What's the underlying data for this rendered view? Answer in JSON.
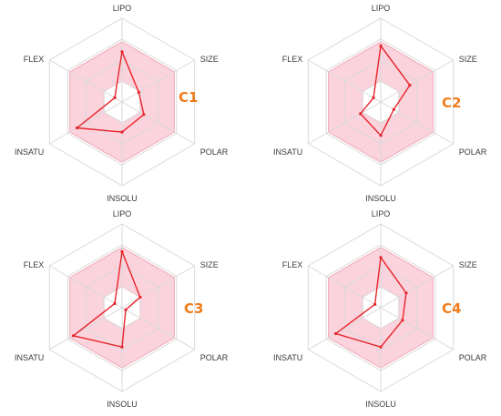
{
  "colors": {
    "grid": "#d9d9d9",
    "band_fill": "#fbd3dc",
    "band_stroke": "#f2a7b8",
    "series_line": "#e8232a",
    "label_accent": "#f07c1c"
  },
  "chart_data": [
    {
      "type": "radar",
      "title": "C1",
      "axes": [
        "LIPO",
        "SIZE",
        "POLAR",
        "INSOLU",
        "INSATU",
        "FLEX"
      ],
      "rmax": 1,
      "rings": 4,
      "band": {
        "inner": 0.25,
        "outer": 0.72
      },
      "series": [
        {
          "values": [
            0.6,
            0.23,
            0.3,
            0.36,
            0.62,
            0.1
          ]
        }
      ]
    },
    {
      "type": "radar",
      "title": "C2",
      "axes": [
        "LIPO",
        "SIZE",
        "POLAR",
        "INSOLU",
        "INSATU",
        "FLEX"
      ],
      "rmax": 1,
      "rings": 4,
      "band": {
        "inner": 0.25,
        "outer": 0.72
      },
      "series": [
        {
          "values": [
            0.67,
            0.4,
            0.18,
            0.4,
            0.28,
            0.1
          ]
        }
      ]
    },
    {
      "type": "radar",
      "title": "C3",
      "axes": [
        "LIPO",
        "SIZE",
        "POLAR",
        "INSOLU",
        "INSATU",
        "FLEX"
      ],
      "rmax": 1,
      "rings": 4,
      "band": {
        "inner": 0.25,
        "outer": 0.72
      },
      "series": [
        {
          "values": [
            0.67,
            0.25,
            0.05,
            0.47,
            0.67,
            0.1
          ]
        }
      ]
    },
    {
      "type": "radar",
      "title": "C4",
      "axes": [
        "LIPO",
        "SIZE",
        "POLAR",
        "INSOLU",
        "INSATU",
        "FLEX"
      ],
      "rmax": 1,
      "rings": 4,
      "band": {
        "inner": 0.25,
        "outer": 0.72
      },
      "series": [
        {
          "values": [
            0.6,
            0.35,
            0.3,
            0.47,
            0.62,
            0.08
          ]
        }
      ]
    }
  ]
}
